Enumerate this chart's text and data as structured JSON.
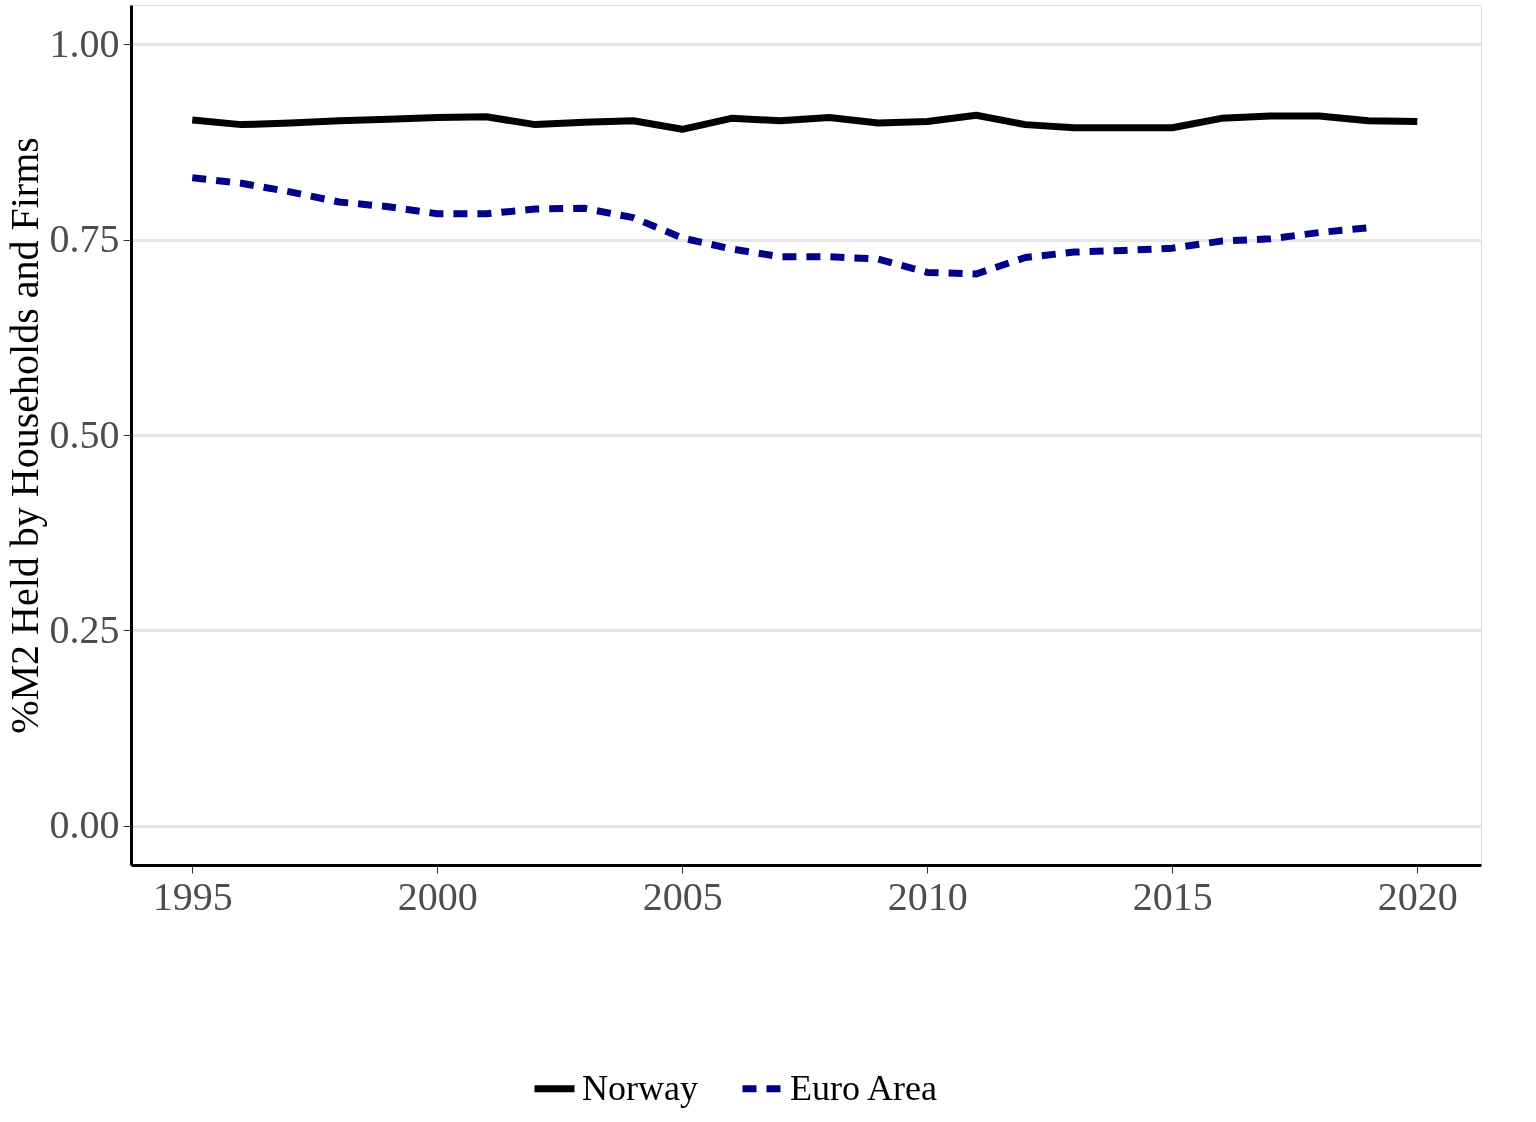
{
  "chart_data": {
    "type": "line",
    "ylabel": "%M2 Held by Households and Firms",
    "x": [
      1995,
      1996,
      1997,
      1998,
      1999,
      2000,
      2001,
      2002,
      2003,
      2004,
      2005,
      2006,
      2007,
      2008,
      2009,
      2010,
      2011,
      2012,
      2013,
      2014,
      2015,
      2016,
      2017,
      2018,
      2019,
      2020
    ],
    "series": [
      {
        "name": "Norway",
        "color": "#000000",
        "line_style": "solid",
        "values": [
          0.903,
          0.897,
          0.899,
          0.902,
          0.904,
          0.906,
          0.907,
          0.897,
          0.9,
          0.902,
          0.891,
          0.905,
          0.902,
          0.906,
          0.899,
          0.901,
          0.909,
          0.897,
          0.893,
          0.893,
          0.893,
          0.905,
          0.908,
          0.908,
          0.902,
          0.901
        ]
      },
      {
        "name": "Euro Area",
        "color": "#00008b",
        "line_style": "dashed",
        "values": [
          0.829,
          0.822,
          0.811,
          0.798,
          0.792,
          0.783,
          0.783,
          0.789,
          0.79,
          0.778,
          0.752,
          0.738,
          0.728,
          0.728,
          0.725,
          0.708,
          0.706,
          0.727,
          0.734,
          0.736,
          0.739,
          0.748,
          0.751,
          0.759,
          0.765,
          null
        ]
      }
    ],
    "xlim": [
      1993.75,
      2021.3
    ],
    "xticks": [
      1995,
      2000,
      2005,
      2010,
      2015,
      2020
    ],
    "ylim": [
      -0.05,
      1.05
    ],
    "yticks": [
      {
        "value": 0,
        "label": "0.00"
      },
      {
        "value": 0.25,
        "label": "0.25"
      },
      {
        "value": 0.5,
        "label": "0.50"
      },
      {
        "value": 0.75,
        "label": "0.75"
      },
      {
        "value": 1,
        "label": "1.00"
      }
    ],
    "grid": "y",
    "legend": "bottom",
    "marker": "none"
  }
}
